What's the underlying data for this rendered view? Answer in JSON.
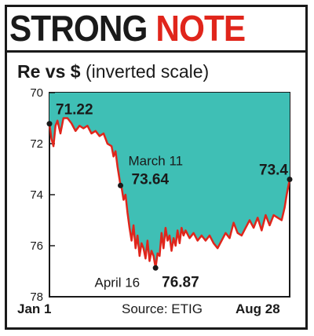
{
  "headline": {
    "part1": "STRONG ",
    "part2": "NOTE"
  },
  "subtitle": {
    "main": "Re vs $",
    "note": "(inverted scale)"
  },
  "colors": {
    "fill": "#3fbfb5",
    "line": "#e0251b",
    "text": "#1a1a1a",
    "accent": "#e0251b"
  },
  "chart_data": {
    "type": "line",
    "title": "",
    "ylabel": "",
    "ylim": [
      70,
      78
    ],
    "inverted": true,
    "yticks": [
      "70",
      "72",
      "74",
      "76",
      "78"
    ],
    "xlim": [
      0,
      240
    ],
    "x_ticks": [
      "Jan 1",
      "Aug 28"
    ],
    "source": "Source: ETIG",
    "series": [
      {
        "name": "",
        "x": [
          0,
          2,
          4,
          6,
          8,
          11,
          14,
          18,
          22,
          26,
          30,
          34,
          38,
          42,
          46,
          50,
          54,
          58,
          62,
          64,
          66,
          68,
          70,
          71,
          72,
          74,
          76,
          78,
          80,
          82,
          84,
          86,
          88,
          90,
          92,
          94,
          96,
          98,
          100,
          102,
          104,
          106,
          108,
          110,
          112,
          114,
          116,
          118,
          120,
          122,
          124,
          126,
          128,
          130,
          132,
          134,
          136,
          140,
          144,
          148,
          152,
          156,
          160,
          164,
          168,
          172,
          176,
          180,
          184,
          188,
          192,
          196,
          200,
          204,
          208,
          212,
          216,
          220,
          224,
          228,
          232,
          235,
          237,
          240
        ],
        "values": [
          71.22,
          71.8,
          72.1,
          71.3,
          71.1,
          71.6,
          71.0,
          71.0,
          71.2,
          71.5,
          71.3,
          71.4,
          71.3,
          71.6,
          71.5,
          71.7,
          71.6,
          72.0,
          72.1,
          72.5,
          72.3,
          72.9,
          73.4,
          73.64,
          73.7,
          74.2,
          74.0,
          74.7,
          75.3,
          75.8,
          75.2,
          76.1,
          75.6,
          76.4,
          75.9,
          76.1,
          76.5,
          75.8,
          76.6,
          76.2,
          76.4,
          76.87,
          76.3,
          76.4,
          75.5,
          76.1,
          75.3,
          75.8,
          75.6,
          76.2,
          75.7,
          76.0,
          75.4,
          75.9,
          75.3,
          75.6,
          75.4,
          75.7,
          75.5,
          75.8,
          75.6,
          75.8,
          75.6,
          75.9,
          76.1,
          75.8,
          75.5,
          75.7,
          75.1,
          75.5,
          75.6,
          75.3,
          75.0,
          75.3,
          74.9,
          75.4,
          74.8,
          75.2,
          74.8,
          74.9,
          75.0,
          74.5,
          74.0,
          73.4
        ]
      }
    ],
    "annotations": [
      {
        "x": 0,
        "y": 71.22,
        "label": "",
        "value": "71.22"
      },
      {
        "x": 71,
        "y": 73.64,
        "label": "March 11",
        "value": "73.64"
      },
      {
        "x": 106,
        "y": 76.87,
        "label": "April 16",
        "value": "76.87"
      },
      {
        "x": 240,
        "y": 73.4,
        "label": "",
        "value": "73.4"
      }
    ]
  }
}
